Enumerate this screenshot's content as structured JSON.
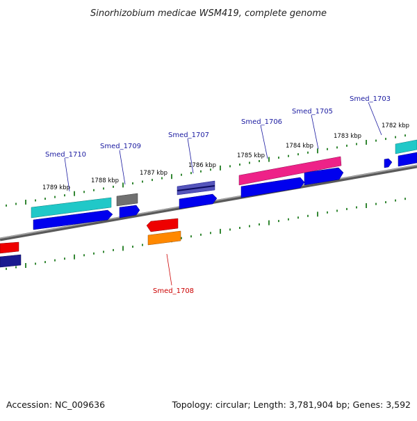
{
  "title": "Sinorhizobium medicae WSM419, complete genome",
  "footer": {
    "accession": "Accession: NC_009636",
    "summary": "Topology: circular; Length: 3,781,904 bp; Genes: 3,592"
  },
  "ticks": [
    {
      "label": "1782 kbp"
    },
    {
      "label": "1783 kbp"
    },
    {
      "label": "1784 kbp"
    },
    {
      "label": "1785 kbp"
    },
    {
      "label": "1786 kbp"
    },
    {
      "label": "1787 kbp"
    },
    {
      "label": "1788 kbp"
    },
    {
      "label": "1789 kbp"
    }
  ],
  "genes": [
    {
      "name": "Smed_1703"
    },
    {
      "name": "Smed_1705"
    },
    {
      "name": "Smed_1706"
    },
    {
      "name": "Smed_1707"
    },
    {
      "name": "Smed_1709"
    },
    {
      "name": "Smed_1710"
    },
    {
      "name": "Smed_1708"
    }
  ],
  "colors": {
    "backbone": "#808080",
    "dots": "#1e7a1e",
    "label_forward": "#1a1aa0",
    "label_reverse": "#cc0000",
    "cds_blue": "#0000ee",
    "cyan": "#20c8c8",
    "pink": "#ee2288",
    "gray": "#707070",
    "navy": "#1a1a90",
    "red": "#ee0000",
    "orange": "#ff8800"
  }
}
